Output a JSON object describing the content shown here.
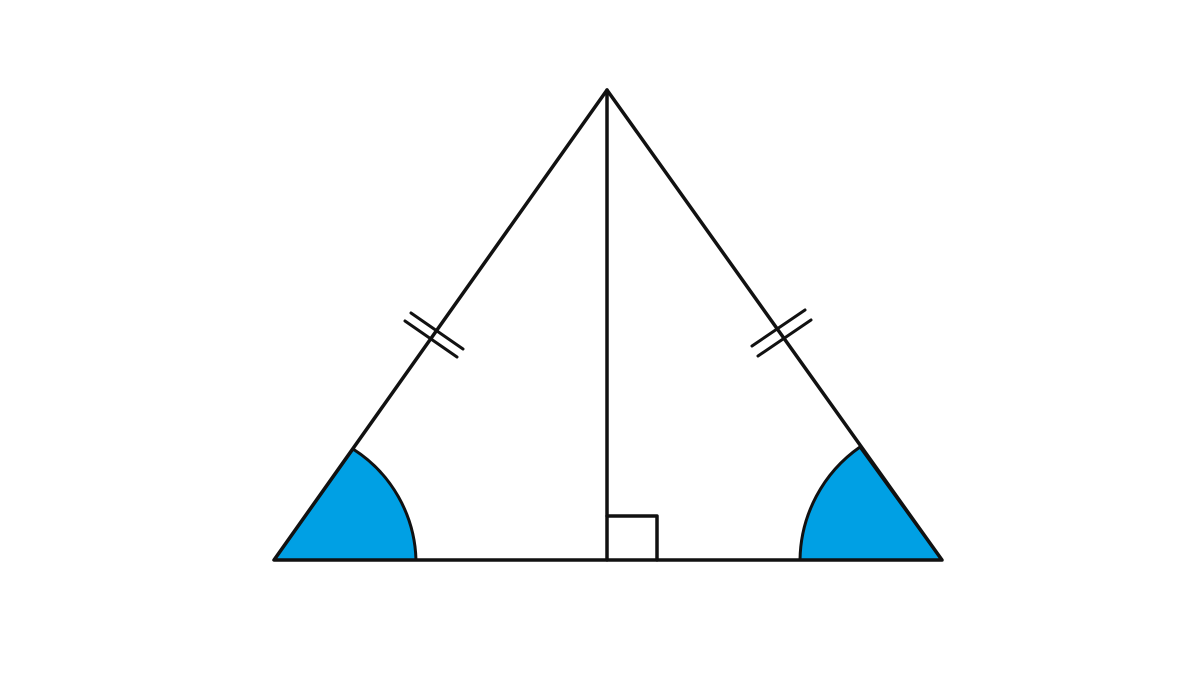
{
  "diagram": {
    "kind": "isosceles-triangle-with-altitude",
    "colors": {
      "angle_fill": "#00A0E4",
      "stroke": "#111111",
      "background": "#ffffff"
    },
    "equal_side_tick_count": 2,
    "right_angle_marker": true
  }
}
